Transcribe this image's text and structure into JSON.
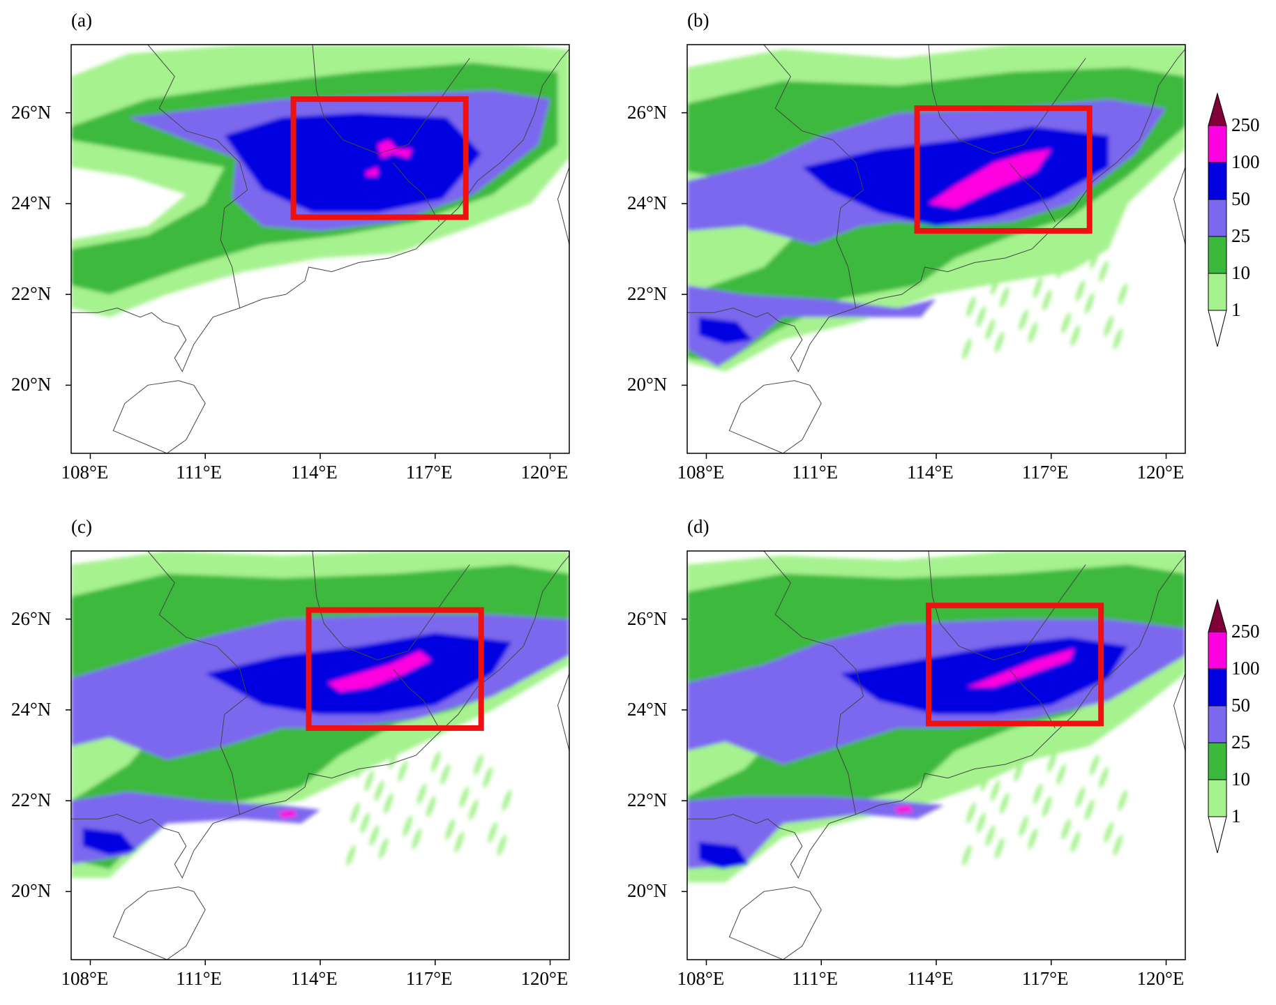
{
  "panels": [
    {
      "label": "(a)",
      "box": {
        "lon": [
          113.3,
          117.8
        ],
        "lat": [
          23.7,
          26.3
        ]
      }
    },
    {
      "label": "(b)",
      "box": {
        "lon": [
          113.5,
          118.0
        ],
        "lat": [
          23.4,
          26.1
        ]
      }
    },
    {
      "label": "(c)",
      "box": {
        "lon": [
          113.7,
          118.2
        ],
        "lat": [
          23.6,
          26.2
        ]
      }
    },
    {
      "label": "(d)",
      "box": {
        "lon": [
          113.8,
          118.3
        ],
        "lat": [
          23.7,
          26.3
        ]
      }
    }
  ],
  "map_extent": {
    "lon": [
      107.5,
      120.5
    ],
    "lat": [
      18.5,
      27.5
    ]
  },
  "lon_ticks": [
    "108°E",
    "111°E",
    "114°E",
    "117°E",
    "120°E"
  ],
  "lat_ticks": [
    "20°N",
    "22°N",
    "24°N",
    "26°N"
  ],
  "colorbar": {
    "levels": [
      "1",
      "10",
      "25",
      "50",
      "100",
      "250"
    ],
    "colors": [
      "#ffffff",
      "#a6f28f",
      "#3cb93c",
      "#7b68ee",
      "#0000e0",
      "#ff00e0",
      "#80003a"
    ]
  },
  "highlight_box_color": "#ee1111"
}
